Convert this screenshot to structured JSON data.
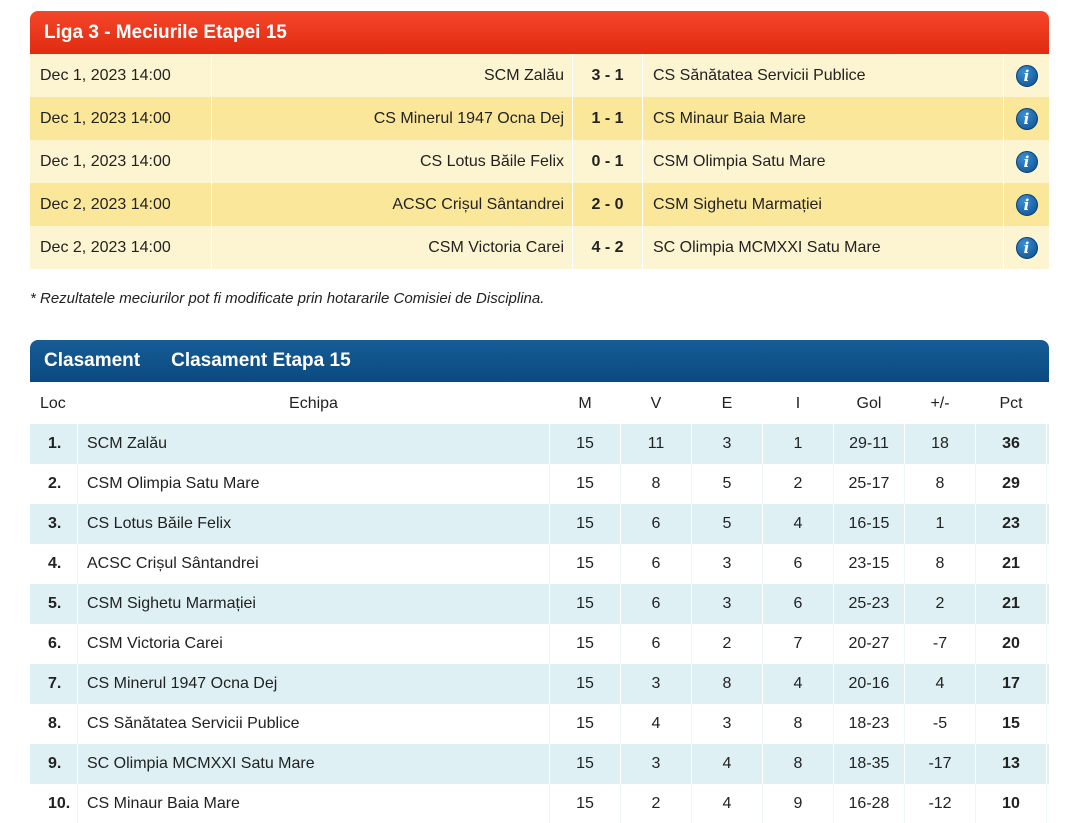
{
  "matches_header": {
    "title": "Liga 3 - Meciurile Etapei 15"
  },
  "matches": [
    {
      "date": "Dec 1, 2023 14:00",
      "home": "SCM Zalău",
      "score": "3 - 1",
      "away": "CS Sănătatea Servicii Publice",
      "icon": "info-icon"
    },
    {
      "date": "Dec 1, 2023 14:00",
      "home": "CS Minerul 1947 Ocna Dej",
      "score": "1 - 1",
      "away": "CS Minaur Baia Mare",
      "icon": "info-icon"
    },
    {
      "date": "Dec 1, 2023 14:00",
      "home": "CS Lotus Băile Felix",
      "score": "0 - 1",
      "away": "CSM Olimpia Satu Mare",
      "icon": "info-icon"
    },
    {
      "date": "Dec 2, 2023 14:00",
      "home": "ACSC Crișul Sântandrei",
      "score": "2 - 0",
      "away": "CSM Sighetu Marmației",
      "icon": "info-icon"
    },
    {
      "date": "Dec 2, 2023 14:00",
      "home": "CSM Victoria Carei",
      "score": "4 - 2",
      "away": "SC Olimpia MCMXXI Satu Mare",
      "icon": "info-icon"
    }
  ],
  "note": "* Rezultatele meciurilor pot fi modificate prin hotararile Comisiei de Disciplina.",
  "standings_header": {
    "tab1": "Clasament",
    "tab2": "Clasament Etapa 15"
  },
  "standings_columns": {
    "loc": "Loc",
    "team": "Echipa",
    "m": "M",
    "v": "V",
    "e": "E",
    "i": "I",
    "gol": "Gol",
    "diff": "+/-",
    "pct": "Pct"
  },
  "standings": [
    {
      "loc": "1.",
      "team": "SCM Zalău",
      "m": "15",
      "v": "11",
      "e": "3",
      "i": "1",
      "gol": "29-11",
      "diff": "18",
      "pct": "36"
    },
    {
      "loc": "2.",
      "team": "CSM Olimpia Satu Mare",
      "m": "15",
      "v": "8",
      "e": "5",
      "i": "2",
      "gol": "25-17",
      "diff": "8",
      "pct": "29"
    },
    {
      "loc": "3.",
      "team": "CS Lotus Băile Felix",
      "m": "15",
      "v": "6",
      "e": "5",
      "i": "4",
      "gol": "16-15",
      "diff": "1",
      "pct": "23"
    },
    {
      "loc": "4.",
      "team": "ACSC Crișul Sântandrei",
      "m": "15",
      "v": "6",
      "e": "3",
      "i": "6",
      "gol": "23-15",
      "diff": "8",
      "pct": "21"
    },
    {
      "loc": "5.",
      "team": "CSM Sighetu Marmației",
      "m": "15",
      "v": "6",
      "e": "3",
      "i": "6",
      "gol": "25-23",
      "diff": "2",
      "pct": "21"
    },
    {
      "loc": "6.",
      "team": "CSM Victoria Carei",
      "m": "15",
      "v": "6",
      "e": "2",
      "i": "7",
      "gol": "20-27",
      "diff": "-7",
      "pct": "20"
    },
    {
      "loc": "7.",
      "team": "CS Minerul 1947 Ocna Dej",
      "m": "15",
      "v": "3",
      "e": "8",
      "i": "4",
      "gol": "20-16",
      "diff": "4",
      "pct": "17"
    },
    {
      "loc": "8.",
      "team": "CS Sănătatea Servicii Publice",
      "m": "15",
      "v": "4",
      "e": "3",
      "i": "8",
      "gol": "18-23",
      "diff": "-5",
      "pct": "15"
    },
    {
      "loc": "9.",
      "team": "SC Olimpia MCMXXI Satu Mare",
      "m": "15",
      "v": "3",
      "e": "4",
      "i": "8",
      "gol": "18-35",
      "diff": "-17",
      "pct": "13"
    },
    {
      "loc": "10.",
      "team": "CS Minaur Baia Mare",
      "m": "15",
      "v": "2",
      "e": "4",
      "i": "9",
      "gol": "16-28",
      "diff": "-12",
      "pct": "10"
    }
  ],
  "colors": {
    "matches_header": "#e8361a",
    "standings_header": "#0f5389",
    "row_light": "#fdf5d2",
    "row_dark": "#fbe79a",
    "standings_shade": "#dff0f4"
  }
}
